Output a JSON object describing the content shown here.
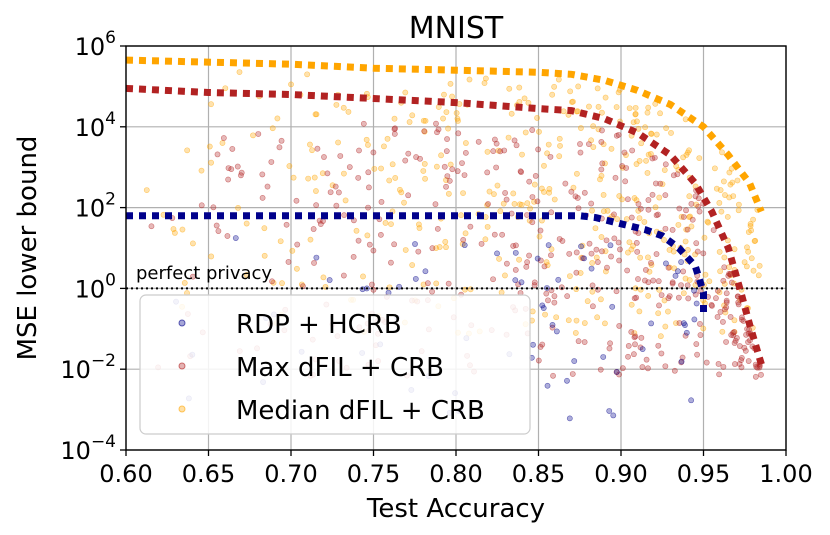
{
  "chart_data": {
    "type": "scatter",
    "title": "MNIST",
    "xlabel": "Test Accuracy",
    "ylabel": "MSE lower bound",
    "xlim": [
      0.6,
      1.0
    ],
    "ylim_log10": [
      -4,
      6
    ],
    "grid": true,
    "x_ticks": [
      "0.60",
      "0.65",
      "0.70",
      "0.75",
      "0.80",
      "0.85",
      "0.90",
      "0.95",
      "1.00"
    ],
    "y_ticks": [
      {
        "base": "10",
        "exp": "6",
        "value_log10": 6
      },
      {
        "base": "10",
        "exp": "4",
        "value_log10": 4
      },
      {
        "base": "10",
        "exp": "2",
        "value_log10": 2
      },
      {
        "base": "10",
        "exp": "0",
        "value_log10": 0
      },
      {
        "base": "10",
        "exp": "−2",
        "value_log10": -2
      },
      {
        "base": "10",
        "exp": "−4",
        "value_log10": -4
      }
    ],
    "annotation": {
      "text": "perfect privacy",
      "y_log10": 0,
      "style": "dotted"
    },
    "legend_position": "lower-left",
    "series": [
      {
        "name": "RDP + HCRB",
        "color": "#00008b",
        "frontier_log10": [
          [
            0.6,
            1.8
          ],
          [
            0.7,
            1.8
          ],
          [
            0.8,
            1.8
          ],
          [
            0.85,
            1.8
          ],
          [
            0.875,
            1.8
          ],
          [
            0.885,
            1.75
          ],
          [
            0.9,
            1.6
          ],
          [
            0.915,
            1.45
          ],
          [
            0.925,
            1.3
          ],
          [
            0.935,
            1.0
          ],
          [
            0.945,
            0.55
          ],
          [
            0.95,
            -0.1
          ],
          [
            0.95,
            -0.6
          ]
        ],
        "point_region": {
          "x": [
            0.6,
            0.95
          ],
          "y_log10": [
            -3.4,
            1.3
          ],
          "count": 70
        },
        "points": []
      },
      {
        "name": "Max dFIL + CRB",
        "color": "#b22222",
        "frontier_log10": [
          [
            0.6,
            4.95
          ],
          [
            0.65,
            4.85
          ],
          [
            0.7,
            4.8
          ],
          [
            0.75,
            4.7
          ],
          [
            0.8,
            4.6
          ],
          [
            0.85,
            4.45
          ],
          [
            0.87,
            4.4
          ],
          [
            0.89,
            4.2
          ],
          [
            0.91,
            3.85
          ],
          [
            0.93,
            3.3
          ],
          [
            0.945,
            2.6
          ],
          [
            0.955,
            1.9
          ],
          [
            0.965,
            1.0
          ],
          [
            0.972,
            0.0
          ],
          [
            0.978,
            -0.9
          ],
          [
            0.983,
            -1.6
          ],
          [
            0.986,
            -2.0
          ]
        ],
        "point_region": {
          "x": [
            0.6,
            0.985
          ],
          "y_log10": [
            -2.2,
            4.1
          ],
          "count": 420
        },
        "points": []
      },
      {
        "name": "Median dFIL + CRB",
        "color": "#ffa500",
        "frontier_log10": [
          [
            0.6,
            5.65
          ],
          [
            0.7,
            5.55
          ],
          [
            0.75,
            5.45
          ],
          [
            0.8,
            5.4
          ],
          [
            0.85,
            5.35
          ],
          [
            0.87,
            5.3
          ],
          [
            0.89,
            5.15
          ],
          [
            0.91,
            4.9
          ],
          [
            0.93,
            4.55
          ],
          [
            0.95,
            4.0
          ],
          [
            0.965,
            3.3
          ],
          [
            0.978,
            2.6
          ],
          [
            0.985,
            1.9
          ]
        ],
        "point_region": {
          "x": [
            0.6,
            0.985
          ],
          "y_log10": [
            -1.2,
            5.4
          ],
          "count": 420
        },
        "points": []
      }
    ]
  }
}
